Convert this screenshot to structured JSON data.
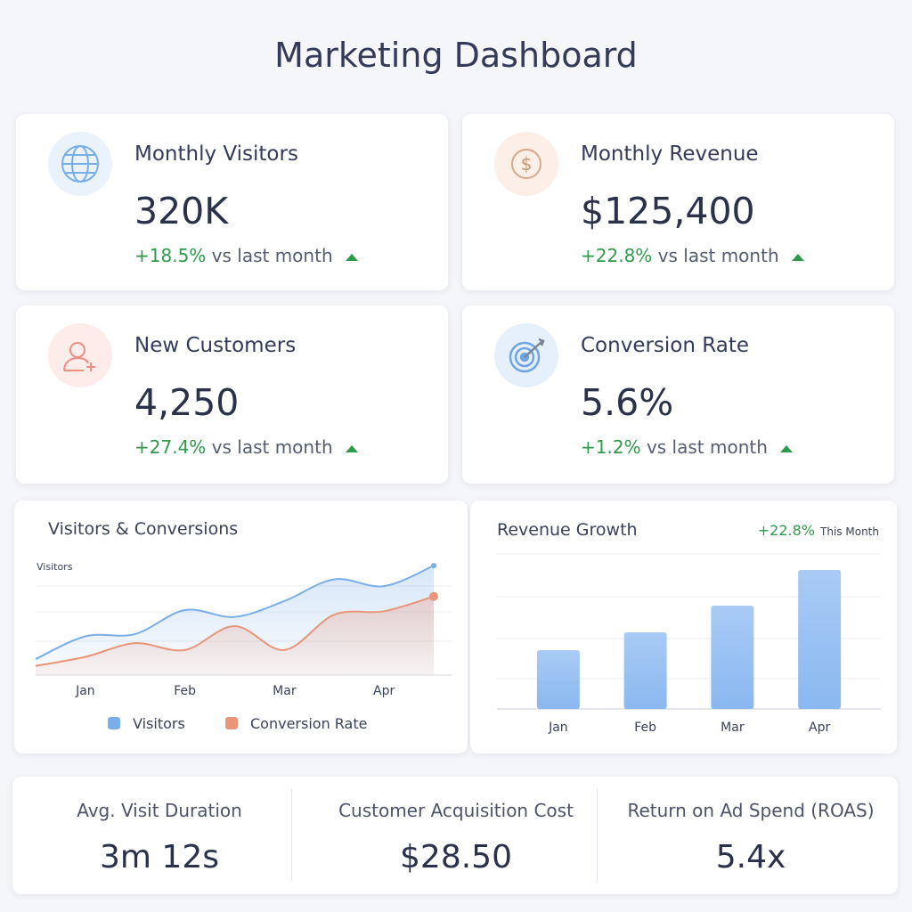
{
  "header": {
    "title": "Marketing Dashboard"
  },
  "kpis": [
    {
      "label": "Monthly Visitors",
      "value": "320K",
      "change": "+18.5%",
      "comparison": "vs last month"
    },
    {
      "label": "Monthly Revenue",
      "value": "$125,400",
      "change": "+22.8%",
      "comparison": "vs last month"
    },
    {
      "label": "New Customers",
      "value": "4,250",
      "change": "+27.4%",
      "comparison": "vs last month"
    },
    {
      "label": "Conversion Rate",
      "value": "5.6%",
      "change": "+1.2%",
      "comparison": "vs last month"
    }
  ],
  "chart_data": [
    {
      "type": "line",
      "title": "Visitors & Conversions",
      "ylabel": "Visitors",
      "categories": [
        null,
        "Jan",
        null,
        "Feb",
        null,
        "Mar",
        null,
        "Apr",
        null
      ],
      "series": [
        {
          "name": "Visitors",
          "color": "#7aaee8",
          "values": [
            14,
            34,
            36,
            57,
            51,
            65,
            84,
            78,
            96
          ]
        },
        {
          "name": "Conversion Rate",
          "color": "#e8957a",
          "values": [
            8,
            16,
            28,
            22,
            43,
            22,
            53,
            56,
            69
          ]
        }
      ],
      "ylim": [
        0,
        100
      ],
      "grid": true,
      "legend": "bottom"
    },
    {
      "type": "bar",
      "title": "Revenue Growth",
      "annotation": "+22.8%",
      "annotation_note": "This Month",
      "categories": [
        "Jan",
        "Feb",
        "Mar",
        "Apr"
      ],
      "values": [
        66,
        86,
        116,
        156
      ],
      "color": "#8fbcf2",
      "ylim": [
        0,
        174
      ],
      "grid": true
    }
  ],
  "stats": [
    {
      "label": "Avg. Visit Duration",
      "value": "3m 12s"
    },
    {
      "label": "Customer Acquisition Cost",
      "value": "$28.50"
    },
    {
      "label": "Return on Ad Spend (ROAS)",
      "value": "5.4x"
    }
  ]
}
